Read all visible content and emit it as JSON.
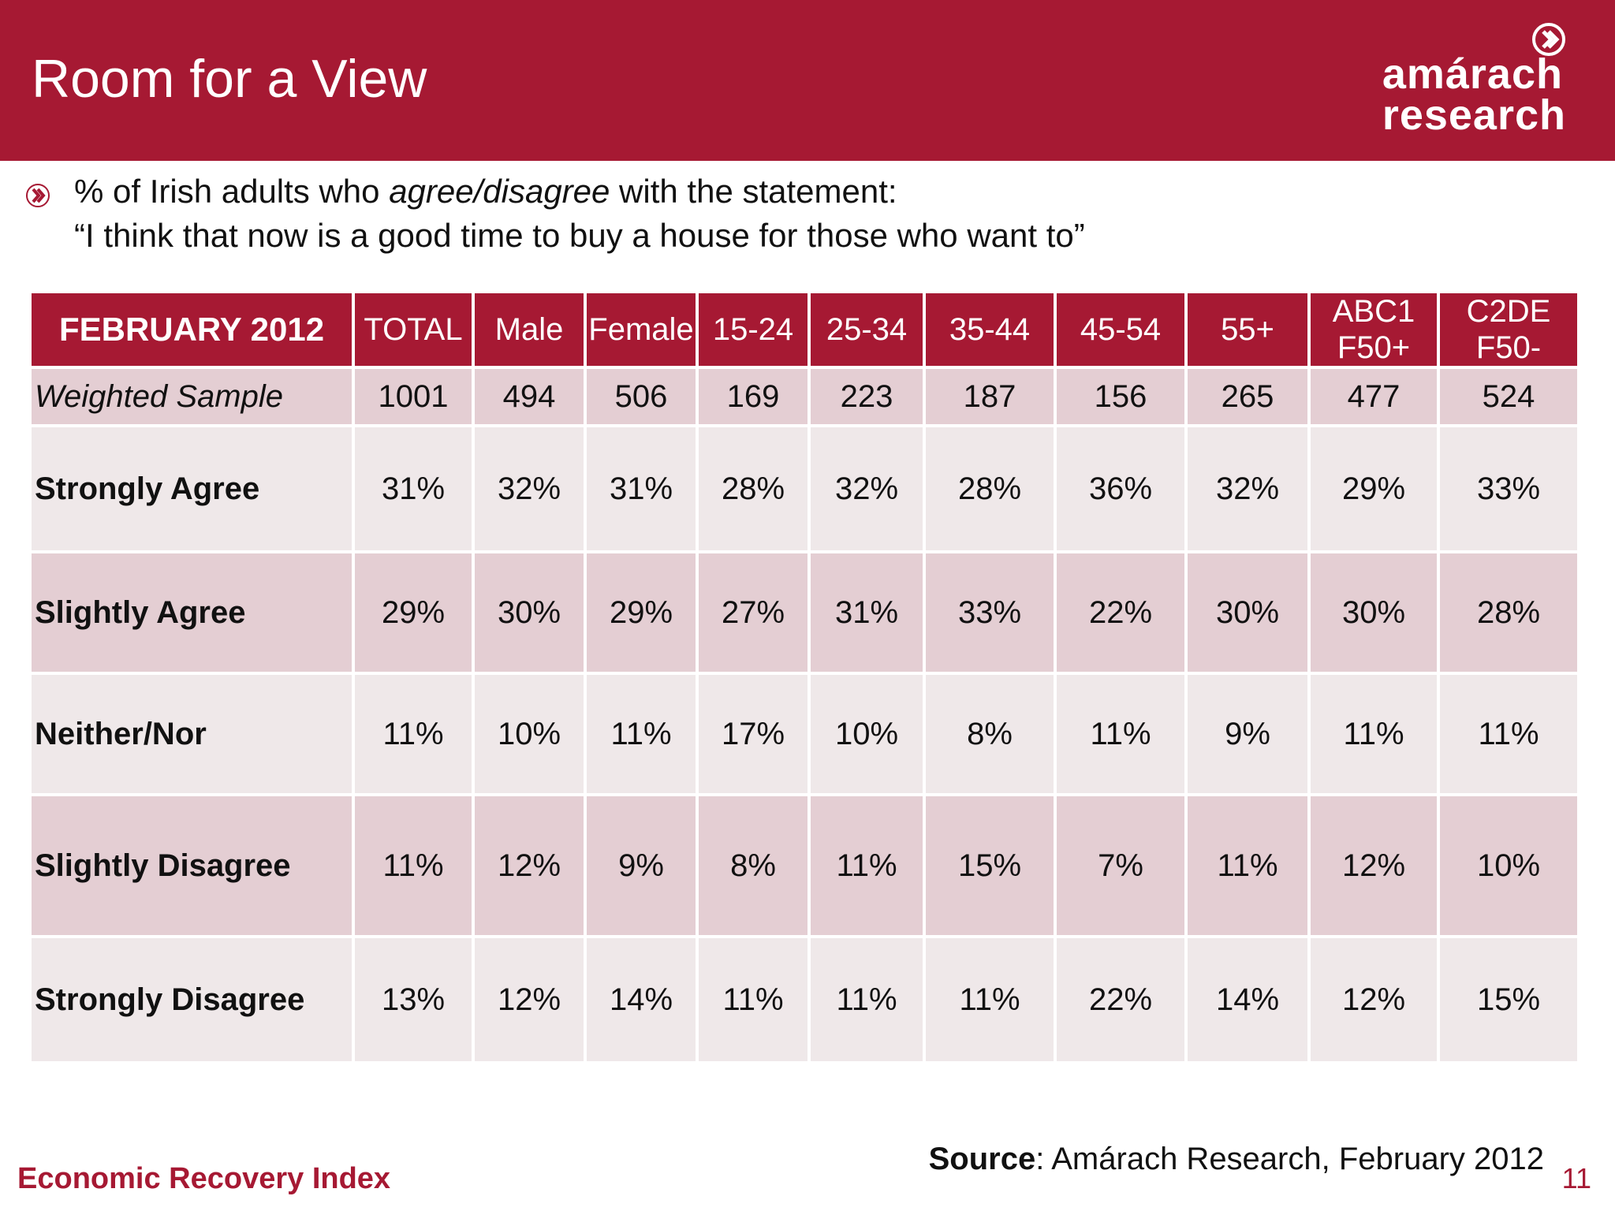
{
  "slide": {
    "title": "Room for a View",
    "logo_line1": "amárach",
    "logo_line2": "research",
    "subtitle_pre": "% of Irish adults who ",
    "subtitle_em": "agree/disagree",
    "subtitle_post": " with the statement:",
    "statement": "“I think that now is a good time to buy a house for those who want to”",
    "footer": "Economic Recovery Index",
    "source_label": "Source",
    "source_text": ": Amárach Research, February 2012",
    "page_number": "11"
  },
  "colors": {
    "brand": "#a61933",
    "row_dark": "#e4ced3",
    "row_light": "#efe8e9"
  },
  "icons": {
    "bullet": "chevron-circle-icon",
    "logo": "chevron-circle-icon"
  },
  "chart_data": {
    "type": "table",
    "corner_label": "FEBRUARY 2012",
    "columns": [
      "TOTAL",
      "Male",
      "Female",
      "15-24",
      "25-34",
      "35-44",
      "45-54",
      "55+",
      "ABC1\nF50+",
      "C2DE\nF50-"
    ],
    "rows": [
      {
        "label": "Weighted Sample",
        "values": [
          "1001",
          "494",
          "506",
          "169",
          "223",
          "187",
          "156",
          "265",
          "477",
          "524"
        ]
      },
      {
        "label": "Strongly Agree",
        "values": [
          "31%",
          "32%",
          "31%",
          "28%",
          "32%",
          "28%",
          "36%",
          "32%",
          "29%",
          "33%"
        ]
      },
      {
        "label": "Slightly Agree",
        "values": [
          "29%",
          "30%",
          "29%",
          "27%",
          "31%",
          "33%",
          "22%",
          "30%",
          "30%",
          "28%"
        ]
      },
      {
        "label": "Neither/Nor",
        "values": [
          "11%",
          "10%",
          "11%",
          "17%",
          "10%",
          "8%",
          "11%",
          "9%",
          "11%",
          "11%"
        ]
      },
      {
        "label": "Slightly Disagree",
        "values": [
          "11%",
          "12%",
          "9%",
          "8%",
          "11%",
          "15%",
          "7%",
          "11%",
          "12%",
          "10%"
        ]
      },
      {
        "label": "Strongly Disagree",
        "values": [
          "13%",
          "12%",
          "14%",
          "11%",
          "11%",
          "11%",
          "22%",
          "14%",
          "12%",
          "15%"
        ]
      }
    ]
  }
}
